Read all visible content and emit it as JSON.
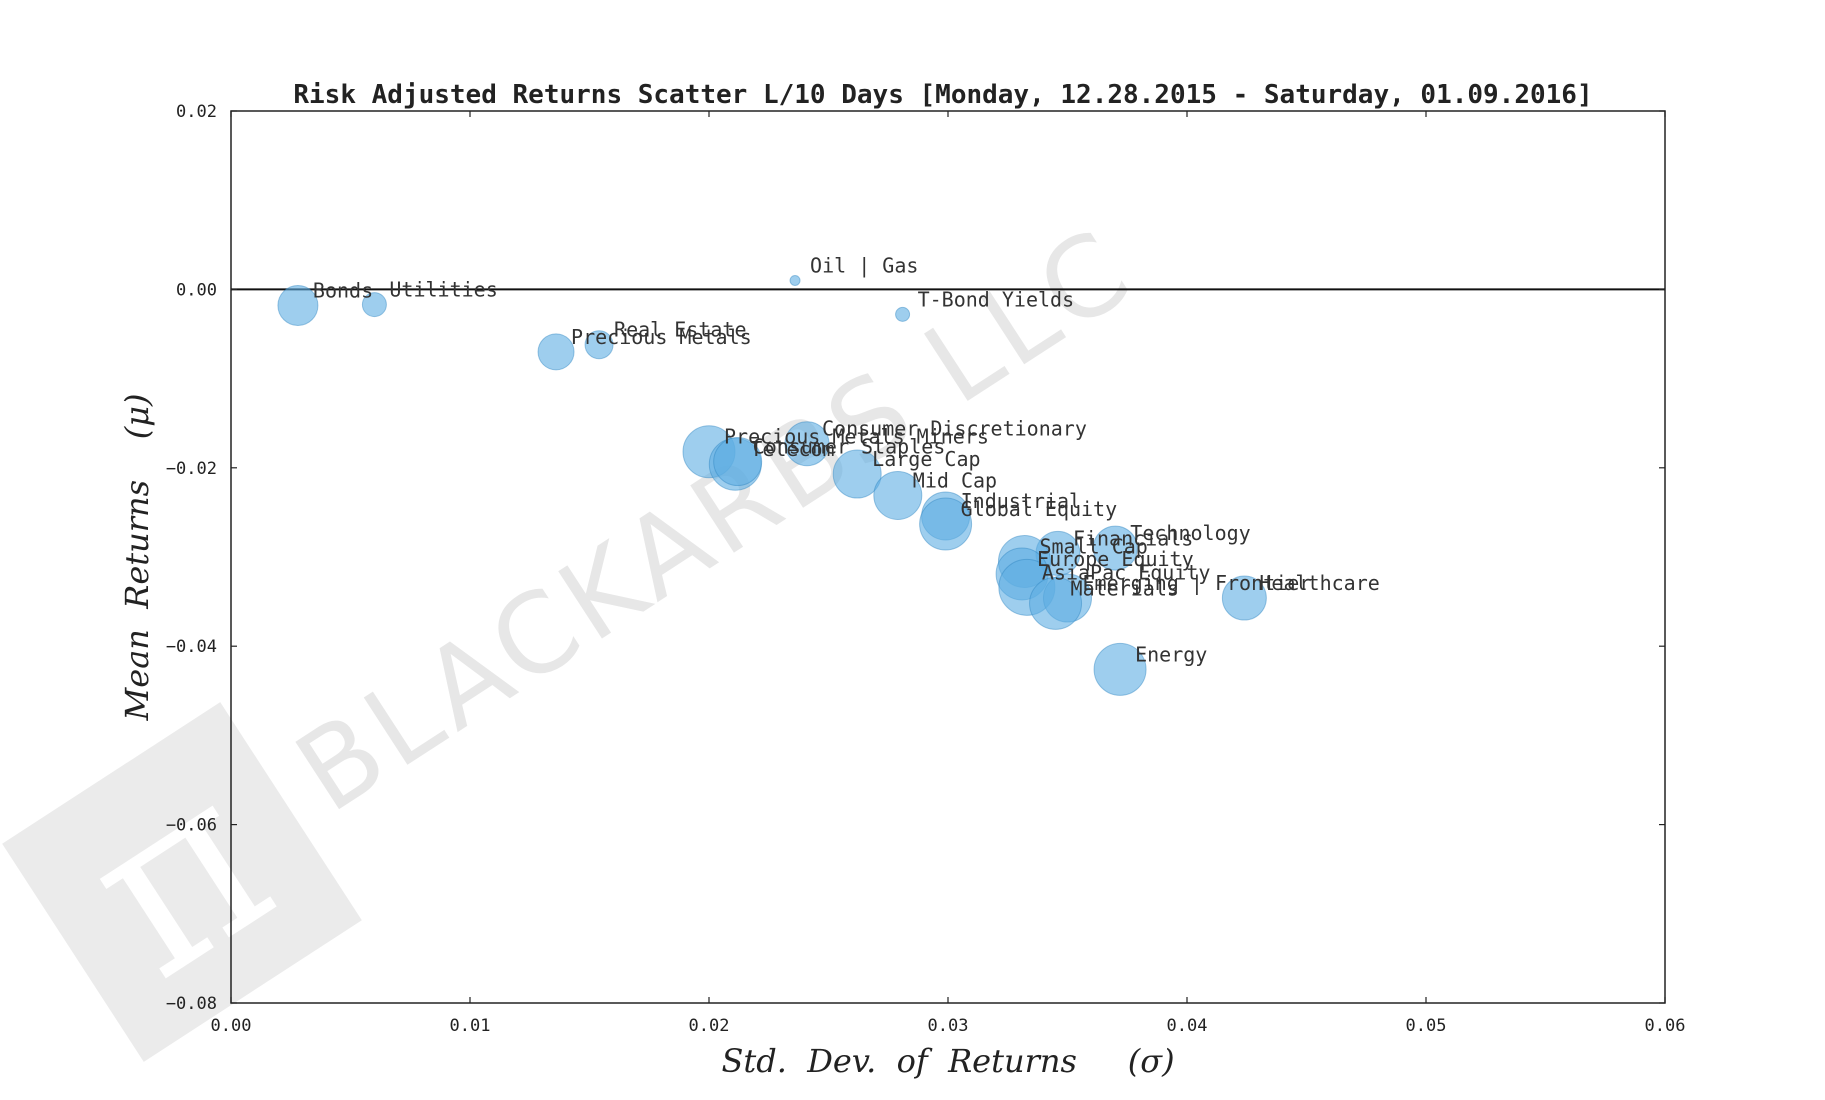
{
  "chart_data": {
    "type": "scatter",
    "title": "Risk Adjusted Returns Scatter L/10 Days [Monday, 12.28.2015 - Saturday, 01.09.2016]",
    "xlabel": "Std.  Dev.  of  Returns     (σ)",
    "ylabel": "Mean  Returns    (μ)",
    "xlim": [
      0.0,
      0.06
    ],
    "ylim": [
      -0.08,
      0.02
    ],
    "xticks": [
      "0.00",
      "0.01",
      "0.02",
      "0.03",
      "0.04",
      "0.05",
      "0.06"
    ],
    "yticks": [
      "0.02",
      "0.00",
      "−0.02",
      "−0.04",
      "−0.06",
      "−0.08"
    ],
    "zero_line": 0.0,
    "grid": false,
    "marker_color": "#5dade2",
    "points": [
      {
        "label": "Bonds",
        "x": 0.0028,
        "y": -0.0018,
        "size": 20
      },
      {
        "label": "Utilities",
        "x": 0.006,
        "y": -0.0017,
        "size": 12
      },
      {
        "label": "Precious Metals",
        "x": 0.0136,
        "y": -0.007,
        "size": 18
      },
      {
        "label": "Real Estate",
        "x": 0.0154,
        "y": -0.0062,
        "size": 14
      },
      {
        "label": "Oil | Gas",
        "x": 0.0236,
        "y": 0.001,
        "size": 5
      },
      {
        "label": "T-Bond Yields",
        "x": 0.0281,
        "y": -0.0028,
        "size": 7
      },
      {
        "label": "Precious Metals Miners",
        "x": 0.02,
        "y": -0.0182,
        "size": 26
      },
      {
        "label": "Consumer Discretionary",
        "x": 0.0241,
        "y": -0.0173,
        "size": 22
      },
      {
        "label": "Telecom",
        "x": 0.0211,
        "y": -0.0196,
        "size": 26
      },
      {
        "label": "Consumer Staples",
        "x": 0.0212,
        "y": -0.0193,
        "size": 24
      },
      {
        "label": "Large Cap",
        "x": 0.0262,
        "y": -0.0207,
        "size": 24
      },
      {
        "label": "Mid Cap",
        "x": 0.0279,
        "y": -0.0231,
        "size": 24
      },
      {
        "label": "Industrial",
        "x": 0.0299,
        "y": -0.0254,
        "size": 24
      },
      {
        "label": "Global Equity",
        "x": 0.0299,
        "y": -0.0263,
        "size": 26
      },
      {
        "label": "Technology",
        "x": 0.037,
        "y": -0.029,
        "size": 22
      },
      {
        "label": "Financials",
        "x": 0.0346,
        "y": -0.0296,
        "size": 22
      },
      {
        "label": "Small Cap",
        "x": 0.0332,
        "y": -0.0305,
        "size": 26
      },
      {
        "label": "Europe Equity",
        "x": 0.0331,
        "y": -0.0319,
        "size": 26
      },
      {
        "label": "AsiaPac Equity",
        "x": 0.0333,
        "y": -0.0334,
        "size": 28
      },
      {
        "label": "Emerging | Frontier",
        "x": 0.035,
        "y": -0.0346,
        "size": 24
      },
      {
        "label": "Materials",
        "x": 0.0345,
        "y": -0.0352,
        "size": 26
      },
      {
        "label": "Healthcare",
        "x": 0.0424,
        "y": -0.0346,
        "size": 22
      },
      {
        "label": "Energy",
        "x": 0.0372,
        "y": -0.0426,
        "size": 26
      }
    ]
  },
  "watermark": {
    "text": "BLACKARBS LLC",
    "logo_glyph": "π"
  }
}
